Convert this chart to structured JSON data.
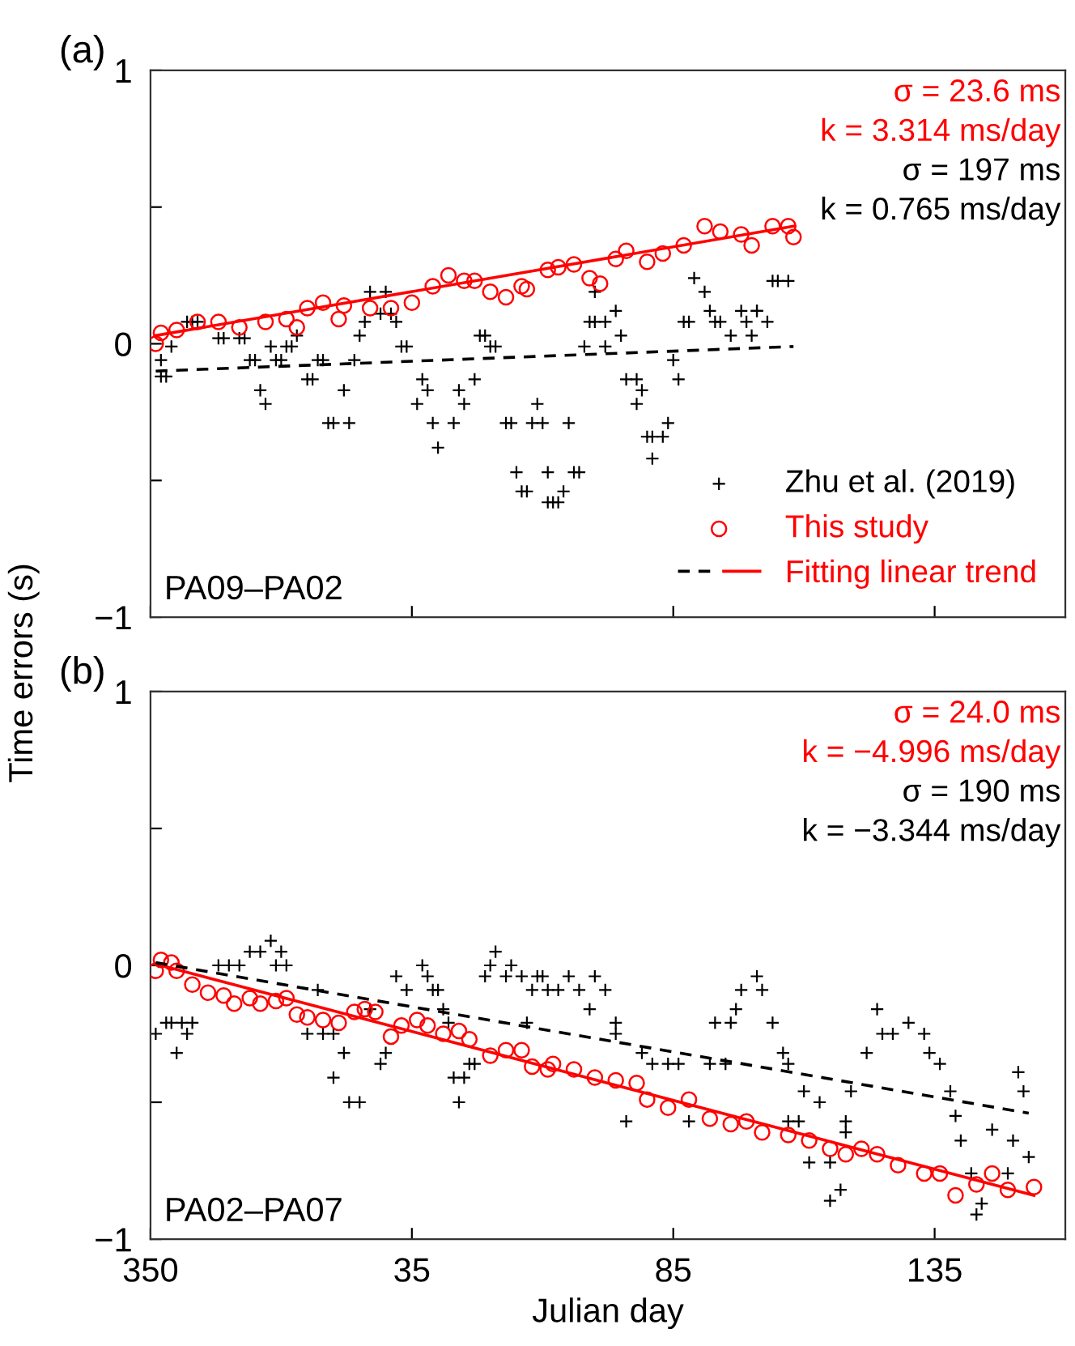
{
  "chart_data": [
    {
      "type": "scatter",
      "title": "(a)",
      "ylabel": "Time errors (s)",
      "xlim": [
        "2018-12-16",
        "2019-06-09"
      ],
      "ylim": [
        -1,
        1
      ],
      "xticks": [
        {
          "value": "2018-12-16",
          "label": null
        },
        {
          "value": "2019-02-04",
          "label": null
        },
        {
          "value": "2019-03-26",
          "label": null
        },
        {
          "value": "2019-05-15",
          "label": null
        }
      ],
      "yticks": [
        {
          "value": -1,
          "label": "−1"
        },
        {
          "value": -0.5,
          "label": null
        },
        0,
        {
          "value": 0.5,
          "label": null
        },
        1
      ],
      "tick_labels": "y",
      "grid": false,
      "legend": "bottom right",
      "annotations": [
        "σ = 23.6 ms",
        "k = 3.314 ms/day",
        "σ = 197 ms",
        "k = 0.765 ms/day",
        "PA09–PA02"
      ],
      "series": [
        {
          "name": "This study",
          "marker": "circle",
          "color": "#ff0000",
          "x": [
            "2018-12-17",
            "2018-12-18",
            "2018-12-21",
            "2018-12-25",
            "2018-12-29",
            "2019-01-02",
            "2019-01-07",
            "2019-01-11",
            "2019-01-13",
            "2019-01-15",
            "2019-01-18",
            "2019-01-21",
            "2019-01-22",
            "2019-01-27",
            "2019-01-31",
            "2019-02-04",
            "2019-02-08",
            "2019-02-11",
            "2019-02-14",
            "2019-02-16",
            "2019-02-19",
            "2019-02-22",
            "2019-02-25",
            "2019-02-26",
            "2019-03-02",
            "2019-03-04",
            "2019-03-07",
            "2019-03-10",
            "2019-03-12",
            "2019-03-15",
            "2019-03-17",
            "2019-03-21",
            "2019-03-24",
            "2019-03-28",
            "2019-04-01",
            "2019-04-04",
            "2019-04-08",
            "2019-04-10",
            "2019-04-14",
            "2019-04-17",
            "2019-04-18"
          ],
          "values": [
            0.0,
            0.04,
            0.05,
            0.08,
            0.08,
            0.06,
            0.08,
            0.09,
            0.06,
            0.13,
            0.15,
            0.09,
            0.14,
            0.13,
            0.13,
            0.15,
            0.21,
            0.25,
            0.23,
            0.23,
            0.19,
            0.17,
            0.21,
            0.2,
            0.27,
            0.28,
            0.29,
            0.24,
            0.22,
            0.31,
            0.34,
            0.3,
            0.33,
            0.36,
            0.43,
            0.41,
            0.4,
            0.36,
            0.43,
            0.43,
            0.39
          ]
        },
        {
          "name": "Fitting linear trend",
          "type": "line",
          "line_style": "solid",
          "color": "#ff0000",
          "x": [
            "2018-12-17",
            "2019-04-18"
          ],
          "values": [
            0.03,
            0.43
          ]
        },
        {
          "name": "Zhu et al. (2019)",
          "marker": "cross",
          "color": "#000000",
          "x": [
            "2018-12-18",
            "2018-12-19",
            "2018-12-18",
            "2018-12-20",
            "2018-12-23",
            "2018-12-24",
            "2018-12-25",
            "2018-12-29",
            "2018-12-30",
            "2019-01-02",
            "2019-01-03",
            "2019-01-04",
            "2019-01-05",
            "2019-01-06",
            "2019-01-07",
            "2019-01-08",
            "2019-01-09",
            "2019-01-10",
            "2019-01-11",
            "2019-01-12",
            "2019-01-13",
            "2019-01-15",
            "2019-01-16",
            "2019-01-17",
            "2019-01-18",
            "2019-01-19",
            "2019-01-20",
            "2019-01-22",
            "2019-01-23",
            "2019-01-24",
            "2019-01-25",
            "2019-01-26",
            "2019-01-27",
            "2019-01-29",
            "2019-01-30",
            "2019-01-31",
            "2019-02-01",
            "2019-02-02",
            "2019-02-03",
            "2019-02-05",
            "2019-02-06",
            "2019-02-07",
            "2019-02-08",
            "2019-02-09",
            "2019-02-12",
            "2019-02-13",
            "2019-02-14",
            "2019-02-16",
            "2019-02-17",
            "2019-02-18",
            "2019-02-19",
            "2019-02-20",
            "2019-02-22",
            "2019-02-23",
            "2019-02-24",
            "2019-02-25",
            "2019-02-26",
            "2019-02-27",
            "2019-02-28",
            "2019-03-01",
            "2019-03-02",
            "2019-03-02",
            "2019-03-03",
            "2019-03-04",
            "2019-03-05",
            "2019-03-06",
            "2019-03-07",
            "2019-03-08",
            "2019-03-09",
            "2019-03-10",
            "2019-03-11",
            "2019-03-11",
            "2019-03-13",
            "2019-03-13",
            "2019-03-15",
            "2019-03-16",
            "2019-03-17",
            "2019-03-19",
            "2019-03-19",
            "2019-03-20",
            "2019-03-21",
            "2019-03-22",
            "2019-03-22",
            "2019-03-24",
            "2019-03-25",
            "2019-03-26",
            "2019-03-27",
            "2019-03-28",
            "2019-03-29",
            "2019-03-30",
            "2019-04-01",
            "2019-04-02",
            "2019-04-03",
            "2019-04-04",
            "2019-04-06",
            "2019-04-08",
            "2019-04-09",
            "2019-04-10",
            "2019-04-11",
            "2019-04-11",
            "2019-04-13",
            "2019-04-14",
            "2019-04-15",
            "2019-04-17"
          ],
          "values": [
            -0.12,
            -0.12,
            -0.06,
            -0.01,
            0.08,
            0.08,
            0.08,
            0.02,
            0.02,
            0.02,
            0.02,
            -0.06,
            -0.06,
            -0.17,
            -0.22,
            -0.01,
            -0.06,
            -0.06,
            -0.01,
            -0.01,
            0.03,
            -0.13,
            -0.13,
            -0.06,
            -0.06,
            -0.29,
            -0.29,
            -0.17,
            -0.29,
            -0.06,
            0.03,
            0.08,
            0.19,
            0.11,
            0.19,
            0.11,
            0.08,
            -0.01,
            -0.01,
            -0.22,
            -0.13,
            -0.17,
            -0.29,
            -0.38,
            -0.29,
            -0.17,
            -0.22,
            -0.13,
            0.03,
            0.03,
            -0.01,
            -0.01,
            -0.29,
            -0.29,
            -0.47,
            -0.54,
            -0.54,
            -0.29,
            -0.22,
            -0.29,
            -0.47,
            -0.58,
            -0.58,
            -0.58,
            -0.54,
            -0.29,
            -0.47,
            -0.47,
            -0.01,
            0.08,
            0.19,
            0.08,
            0.08,
            -0.01,
            0.12,
            0.03,
            -0.13,
            -0.13,
            -0.22,
            -0.17,
            -0.34,
            -0.34,
            -0.42,
            -0.34,
            -0.29,
            -0.06,
            -0.13,
            0.08,
            0.08,
            0.24,
            0.19,
            0.12,
            0.08,
            0.08,
            0.03,
            0.12,
            0.08,
            0.03,
            0.12,
            0.12,
            0.08,
            0.23,
            0.23,
            0.23
          ]
        },
        {
          "type": "line",
          "line_style": "dashed",
          "color": "#000000",
          "x": [
            "2018-12-17",
            "2019-04-18"
          ],
          "values": [
            -0.1,
            -0.01
          ]
        }
      ]
    },
    {
      "type": "scatter",
      "title": "(b)",
      "xlabel": "Julian day",
      "xlim": [
        "2018-12-16",
        "2019-06-09"
      ],
      "ylim": [
        -1,
        1
      ],
      "xticks": [
        {
          "value": "2018-12-16",
          "label": "350"
        },
        {
          "value": "2019-02-04",
          "label": "35"
        },
        {
          "value": "2019-03-26",
          "label": "85"
        },
        {
          "value": "2019-05-15",
          "label": "135"
        }
      ],
      "yticks": [
        {
          "value": -1,
          "label": "−1"
        },
        {
          "value": -0.5,
          "label": null
        },
        0,
        {
          "value": 0.5,
          "label": null
        },
        1
      ],
      "grid": false,
      "annotations": [
        "σ = 24.0 ms",
        "k = −4.996 ms/day",
        "σ = 190 ms",
        "k = −3.344 ms/day",
        "PA02–PA07"
      ],
      "series": [
        {
          "marker": "circle",
          "color": "#ff0000",
          "x": [
            "2018-12-17",
            "2018-12-18",
            "2018-12-20",
            "2018-12-21",
            "2018-12-24",
            "2018-12-27",
            "2018-12-30",
            "2019-01-01",
            "2019-01-04",
            "2019-01-06",
            "2019-01-09",
            "2019-01-11",
            "2019-01-13",
            "2019-01-15",
            "2019-01-18",
            "2019-01-21",
            "2019-01-24",
            "2019-01-26",
            "2019-01-28",
            "2019-01-31",
            "2019-02-02",
            "2019-02-05",
            "2019-02-07",
            "2019-02-10",
            "2019-02-13",
            "2019-02-15",
            "2019-02-19",
            "2019-02-22",
            "2019-02-25",
            "2019-02-27",
            "2019-03-02",
            "2019-03-03",
            "2019-03-07",
            "2019-03-11",
            "2019-03-15",
            "2019-03-19",
            "2019-03-21",
            "2019-03-25",
            "2019-03-29",
            "2019-04-02",
            "2019-04-06",
            "2019-04-09",
            "2019-04-12",
            "2019-04-17",
            "2019-04-21",
            "2019-04-25",
            "2019-04-28",
            "2019-05-01",
            "2019-05-04",
            "2019-05-08",
            "2019-05-13",
            "2019-05-16",
            "2019-05-19",
            "2019-05-23",
            "2019-05-26",
            "2019-05-29",
            "2019-06-03"
          ],
          "values": [
            -0.02,
            0.02,
            0.01,
            -0.02,
            -0.07,
            -0.1,
            -0.11,
            -0.14,
            -0.12,
            -0.14,
            -0.13,
            -0.12,
            -0.18,
            -0.19,
            -0.2,
            -0.21,
            -0.17,
            -0.16,
            -0.17,
            -0.26,
            -0.22,
            -0.2,
            -0.22,
            -0.25,
            -0.24,
            -0.27,
            -0.33,
            -0.31,
            -0.31,
            -0.37,
            -0.38,
            -0.36,
            -0.38,
            -0.41,
            -0.42,
            -0.43,
            -0.49,
            -0.52,
            -0.49,
            -0.56,
            -0.58,
            -0.57,
            -0.61,
            -0.62,
            -0.64,
            -0.67,
            -0.69,
            -0.67,
            -0.69,
            -0.73,
            -0.76,
            -0.76,
            -0.84,
            -0.8,
            -0.76,
            -0.82,
            -0.81
          ]
        },
        {
          "type": "line",
          "line_style": "solid",
          "color": "#ff0000",
          "x": [
            "2018-12-18",
            "2019-06-03"
          ],
          "values": [
            0.0,
            -0.84
          ]
        },
        {
          "marker": "cross",
          "color": "#000000",
          "x": [
            "2018-12-17",
            "2018-12-19",
            "2018-12-20",
            "2018-12-21",
            "2018-12-22",
            "2018-12-23",
            "2018-12-24",
            "2018-12-29",
            "2018-12-31",
            "2019-01-02",
            "2019-01-04",
            "2019-01-06",
            "2019-01-08",
            "2019-01-09",
            "2019-01-10",
            "2019-01-11",
            "2019-01-15",
            "2019-01-17",
            "2019-01-18",
            "2019-01-20",
            "2019-01-20",
            "2019-01-22",
            "2019-01-23",
            "2019-01-25",
            "2019-01-27",
            "2019-01-29",
            "2019-01-30",
            "2019-02-01",
            "2019-02-03",
            "2019-02-06",
            "2019-02-07",
            "2019-02-08",
            "2019-02-09",
            "2019-02-10",
            "2019-02-11",
            "2019-02-12",
            "2019-02-13",
            "2019-02-14",
            "2019-02-15",
            "2019-02-16",
            "2019-02-18",
            "2019-02-19",
            "2019-02-20",
            "2019-02-22",
            "2019-02-23",
            "2019-02-25",
            "2019-02-26",
            "2019-02-27",
            "2019-02-28",
            "2019-03-01",
            "2019-03-02",
            "2019-03-04",
            "2019-03-06",
            "2019-03-08",
            "2019-03-10",
            "2019-03-11",
            "2019-03-13",
            "2019-03-15",
            "2019-03-15",
            "2019-03-17",
            "2019-03-20",
            "2019-03-22",
            "2019-03-25",
            "2019-03-27",
            "2019-03-29",
            "2019-04-02",
            "2019-04-03",
            "2019-04-05",
            "2019-04-06",
            "2019-04-07",
            "2019-04-08",
            "2019-04-11",
            "2019-04-12",
            "2019-04-14",
            "2019-04-16",
            "2019-04-17",
            "2019-04-17",
            "2019-04-19",
            "2019-04-20",
            "2019-04-21",
            "2019-04-23",
            "2019-04-25",
            "2019-04-25",
            "2019-04-27",
            "2019-04-28",
            "2019-04-28",
            "2019-04-29",
            "2019-05-02",
            "2019-05-04",
            "2019-05-05",
            "2019-05-07",
            "2019-05-10",
            "2019-05-13",
            "2019-05-14",
            "2019-05-16",
            "2019-05-18",
            "2019-05-19",
            "2019-05-20",
            "2019-05-22",
            "2019-05-23",
            "2019-05-24",
            "2019-05-26",
            "2019-05-29",
            "2019-05-30",
            "2019-05-31",
            "2019-06-01",
            "2019-06-02"
          ],
          "values": [
            -0.25,
            -0.21,
            -0.21,
            -0.32,
            -0.21,
            -0.25,
            -0.21,
            0.0,
            0.0,
            0.0,
            0.05,
            0.05,
            0.09,
            0.0,
            0.05,
            0.0,
            -0.25,
            -0.09,
            -0.25,
            -0.41,
            -0.25,
            -0.32,
            -0.5,
            -0.5,
            -0.16,
            -0.36,
            -0.32,
            -0.04,
            -0.09,
            0.0,
            -0.04,
            -0.09,
            -0.09,
            -0.16,
            -0.21,
            -0.41,
            -0.5,
            -0.41,
            -0.36,
            -0.36,
            -0.04,
            0.0,
            0.05,
            -0.04,
            0.0,
            -0.04,
            -0.21,
            -0.09,
            -0.04,
            -0.04,
            -0.09,
            -0.09,
            -0.04,
            -0.09,
            -0.16,
            -0.04,
            -0.09,
            -0.21,
            -0.25,
            -0.57,
            -0.32,
            -0.36,
            -0.36,
            -0.36,
            -0.57,
            -0.36,
            -0.21,
            -0.36,
            -0.21,
            -0.16,
            -0.09,
            -0.04,
            -0.09,
            -0.21,
            -0.32,
            -0.57,
            -0.36,
            -0.57,
            -0.46,
            -0.72,
            -0.5,
            -0.72,
            -0.86,
            -0.82,
            -0.61,
            -0.57,
            -0.46,
            -0.32,
            -0.16,
            -0.25,
            -0.25,
            -0.21,
            -0.25,
            -0.32,
            -0.36,
            -0.46,
            -0.55,
            -0.64,
            -0.76,
            -0.91,
            -0.87,
            -0.6,
            -0.76,
            -0.64,
            -0.39,
            -0.46,
            -0.7
          ]
        },
        {
          "type": "line",
          "line_style": "dashed",
          "color": "#000000",
          "x": [
            "2018-12-17",
            "2019-06-02"
          ],
          "values": [
            0.01,
            -0.54
          ]
        }
      ]
    }
  ]
}
